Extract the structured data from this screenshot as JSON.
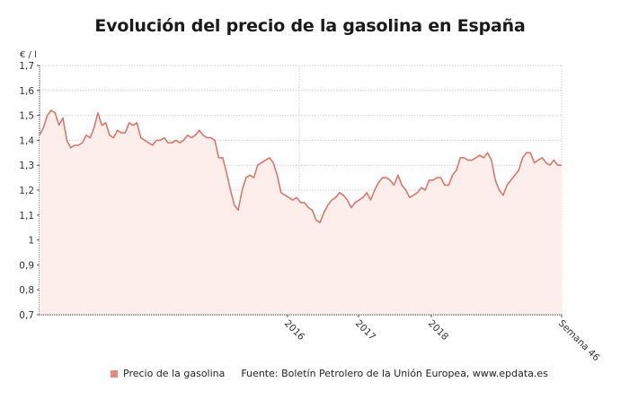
{
  "title": "Evolución del precio de la gasolina en España",
  "unit_label": "€ / l",
  "legend": {
    "series_label": "Precio de la gasolina",
    "source": "Fuente: Boletín Petrolero de la Unión Europea, www.epdata.es"
  },
  "colors": {
    "line": "#d9776b",
    "fill": "#fdeeec",
    "grid": "#c8c8c8",
    "swatch": "#e58a7e"
  },
  "chart_data": {
    "type": "area",
    "title": "Evolución del precio de la gasolina en España",
    "xlabel": "",
    "ylabel": "€ / l",
    "ylim": [
      0.7,
      1.7
    ],
    "yticks": [
      "1,7",
      "1,6",
      "1,5",
      "1,4",
      "1,3",
      "1,2",
      "1,1",
      "1",
      "0,9",
      "0,8",
      "0,7"
    ],
    "xticks": [
      "2016",
      "2017",
      "2018",
      "Semana 46"
    ],
    "grid": true,
    "legend_position": "bottom",
    "series": [
      {
        "name": "Precio de la gasolina",
        "x_index_note": "weekly points, left edge to Semana 46",
        "values": [
          1.42,
          1.45,
          1.5,
          1.52,
          1.51,
          1.46,
          1.49,
          1.4,
          1.37,
          1.38,
          1.38,
          1.39,
          1.42,
          1.41,
          1.45,
          1.51,
          1.46,
          1.47,
          1.42,
          1.41,
          1.44,
          1.43,
          1.43,
          1.47,
          1.46,
          1.47,
          1.41,
          1.4,
          1.39,
          1.38,
          1.4,
          1.4,
          1.41,
          1.39,
          1.39,
          1.4,
          1.39,
          1.4,
          1.42,
          1.41,
          1.42,
          1.44,
          1.42,
          1.41,
          1.41,
          1.4,
          1.33,
          1.33,
          1.27,
          1.2,
          1.14,
          1.12,
          1.2,
          1.25,
          1.26,
          1.25,
          1.3,
          1.31,
          1.32,
          1.33,
          1.31,
          1.26,
          1.19,
          1.18,
          1.17,
          1.16,
          1.17,
          1.15,
          1.15,
          1.13,
          1.12,
          1.08,
          1.07,
          1.11,
          1.14,
          1.16,
          1.17,
          1.19,
          1.18,
          1.16,
          1.13,
          1.15,
          1.16,
          1.17,
          1.19,
          1.16,
          1.2,
          1.23,
          1.25,
          1.25,
          1.24,
          1.22,
          1.26,
          1.22,
          1.2,
          1.17,
          1.18,
          1.19,
          1.21,
          1.2,
          1.24,
          1.24,
          1.25,
          1.25,
          1.22,
          1.22,
          1.26,
          1.28,
          1.33,
          1.33,
          1.32,
          1.32,
          1.33,
          1.34,
          1.33,
          1.35,
          1.32,
          1.24,
          1.2,
          1.18,
          1.22,
          1.24,
          1.26,
          1.28,
          1.33,
          1.35,
          1.35,
          1.31,
          1.32,
          1.33,
          1.31,
          1.3,
          1.32,
          1.3,
          1.3
        ]
      }
    ]
  }
}
